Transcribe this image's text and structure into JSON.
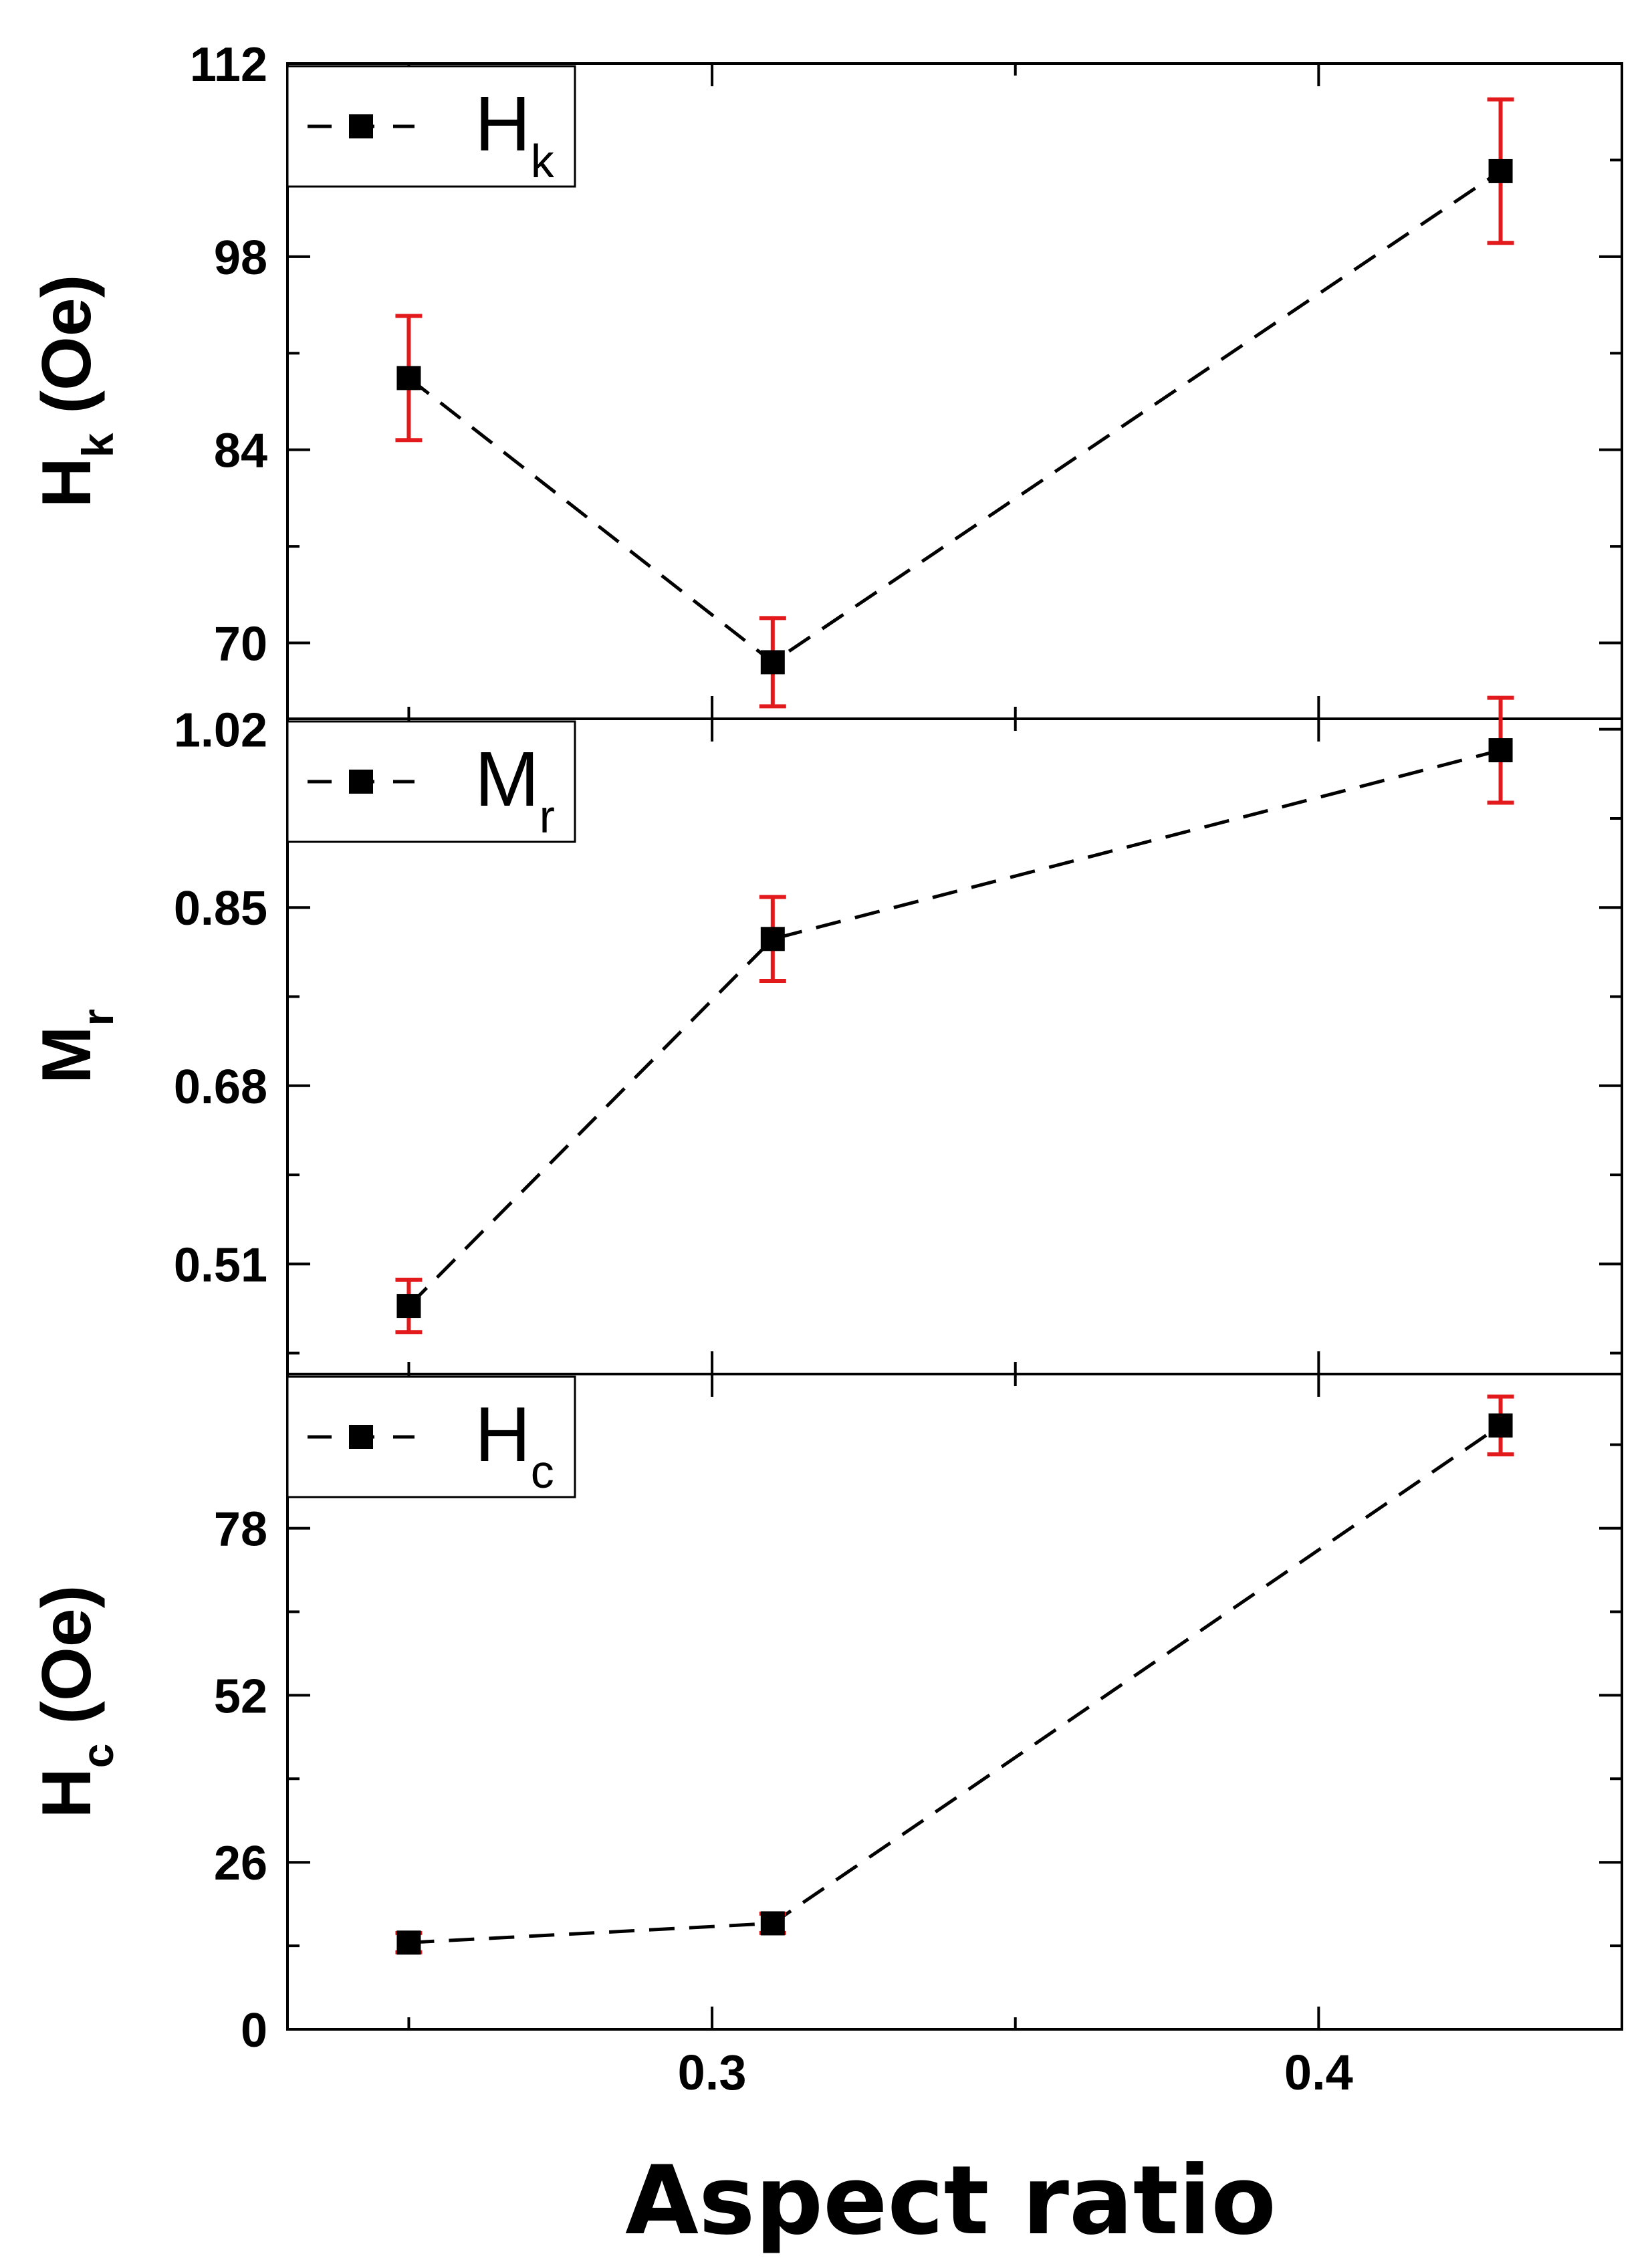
{
  "chart_data": {
    "type": "scatter",
    "xlabel": "Aspect ratio",
    "x_ticks": [
      "0.3",
      "0.4"
    ],
    "xlim": [
      0.23,
      0.45
    ],
    "colors": {
      "marker": "#000000",
      "error_bar": "#e31a1c",
      "line": "#000000"
    },
    "panels": [
      {
        "ylabel_main": "H",
        "ylabel_sub": "k",
        "ylabel_unit": " (Oe)",
        "legend_main": "H",
        "legend_sub": "k",
        "legend_position": "top-left",
        "y_ticks": [
          "70",
          "84",
          "98",
          "112"
        ],
        "ylim": [
          64.5,
          112
        ],
        "x": [
          0.25,
          0.31,
          0.43
        ],
        "y": [
          89.2,
          68.6,
          104.2
        ],
        "yerr": [
          4.5,
          3.2,
          5.2
        ]
      },
      {
        "ylabel_main": "M",
        "ylabel_sub": "r",
        "ylabel_unit": "",
        "legend_main": "M",
        "legend_sub": "r",
        "legend_position": "top-left",
        "y_ticks": [
          "0.51",
          "0.68",
          "0.85",
          "1.02"
        ],
        "ylim": [
          0.405,
          1.03
        ],
        "x": [
          0.25,
          0.31,
          0.43
        ],
        "y": [
          0.47,
          0.82,
          1.0
        ],
        "yerr": [
          0.025,
          0.04,
          0.05
        ]
      },
      {
        "ylabel_main": "H",
        "ylabel_sub": "c",
        "ylabel_unit": " (Oe)",
        "legend_main": "H",
        "legend_sub": "c",
        "legend_position": "top-left",
        "y_ticks": [
          "0",
          "26",
          "52",
          "78"
        ],
        "ylim": [
          0,
          102
        ],
        "x": [
          0.25,
          0.31,
          0.43
        ],
        "y": [
          13.5,
          16.5,
          94
        ],
        "yerr": [
          1.5,
          1.5,
          4.5
        ]
      }
    ]
  }
}
